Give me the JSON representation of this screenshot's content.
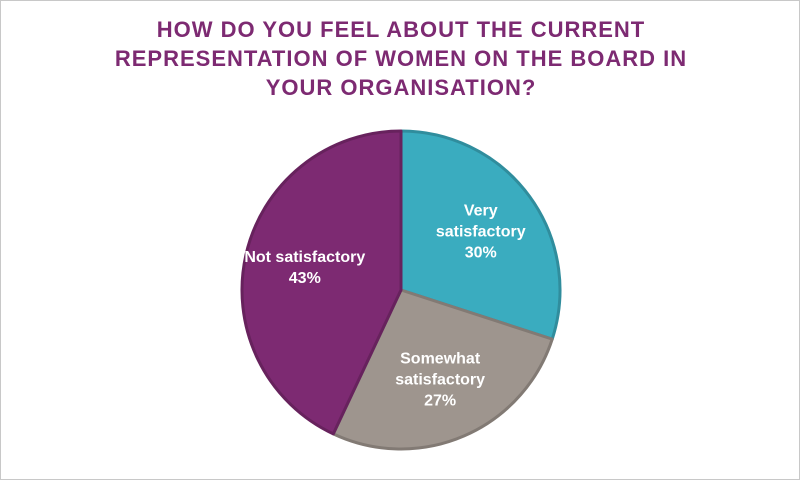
{
  "chart_data": {
    "type": "pie",
    "title": "HOW DO YOU FEEL ABOUT THE CURRENT REPRESENTATION OF WOMEN ON THE BOARD IN YOUR ORGANISATION?",
    "categories": [
      "Very satisfactory",
      "Somewhat satisfactory",
      "Not satisfactory"
    ],
    "values": [
      30,
      27,
      43
    ],
    "value_labels": [
      "30%",
      "27%",
      "43%"
    ],
    "colors": [
      "#3aacbf",
      "#9e958e",
      "#7d2a72"
    ]
  }
}
